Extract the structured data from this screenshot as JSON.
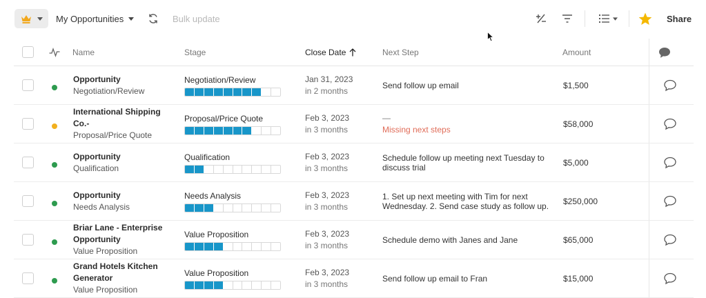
{
  "toolbar": {
    "view_name": "My Opportunities",
    "bulk_update_label": "Bulk update",
    "share_label": "Share",
    "accent_color": "#f2a81d",
    "star_color": "#f5b800"
  },
  "table": {
    "headers": {
      "name": "Name",
      "stage": "Stage",
      "close_date": "Close Date",
      "close_date_sort_icon": "arrow-up-icon",
      "next_step": "Next Step",
      "amount": "Amount"
    },
    "rows": [
      {
        "name": "Opportunity",
        "name_sub": "Negotiation/Review",
        "status_color": "#2e9b4f",
        "stage": "Negotiation/Review",
        "stage_progress": 8,
        "stage_total": 10,
        "close_date": "Jan 31, 2023",
        "close_relative": "in 2 months",
        "next_step": "Send follow up email",
        "next_missing": false,
        "amount": "$1,500"
      },
      {
        "name": "International Shipping Co.-",
        "name_sub": "Proposal/Price Quote",
        "status_color": "#f2b01e",
        "stage": "Proposal/Price Quote",
        "stage_progress": 7,
        "stage_total": 10,
        "close_date": "Feb 3, 2023",
        "close_relative": "in 3 months",
        "next_step": "—",
        "next_missing": true,
        "missing_text": "Missing next steps",
        "amount": "$58,000"
      },
      {
        "name": "Opportunity",
        "name_sub": "Qualification",
        "status_color": "#2e9b4f",
        "stage": "Qualification",
        "stage_progress": 2,
        "stage_total": 10,
        "close_date": "Feb 3, 2023",
        "close_relative": "in 3 months",
        "next_step": "Schedule follow up meeting next Tuesday to discuss trial",
        "next_missing": false,
        "amount": "$5,000"
      },
      {
        "name": "Opportunity",
        "name_sub": "Needs Analysis",
        "status_color": "#2e9b4f",
        "stage": "Needs Analysis",
        "stage_progress": 3,
        "stage_total": 10,
        "close_date": "Feb 3, 2023",
        "close_relative": "in 3 months",
        "next_step": "1. Set up next meeting with Tim for next Wednesday. 2. Send case study as follow up.",
        "next_missing": false,
        "amount": "$250,000"
      },
      {
        "name": "Briar Lane - Enterprise Opportunity",
        "name_sub": "Value Proposition",
        "status_color": "#2e9b4f",
        "stage": "Value Proposition",
        "stage_progress": 4,
        "stage_total": 10,
        "close_date": "Feb 3, 2023",
        "close_relative": "in 3 months",
        "next_step": "Schedule demo with Janes and Jane",
        "next_missing": false,
        "amount": "$65,000"
      },
      {
        "name": "Grand Hotels Kitchen Generator",
        "name_sub": "Value Proposition",
        "status_color": "#2e9b4f",
        "stage": "Value Proposition",
        "stage_progress": 4,
        "stage_total": 10,
        "close_date": "Feb 3, 2023",
        "close_relative": "in 3 months",
        "next_step": "Send follow up email to Fran",
        "next_missing": false,
        "amount": "$15,000"
      }
    ]
  }
}
